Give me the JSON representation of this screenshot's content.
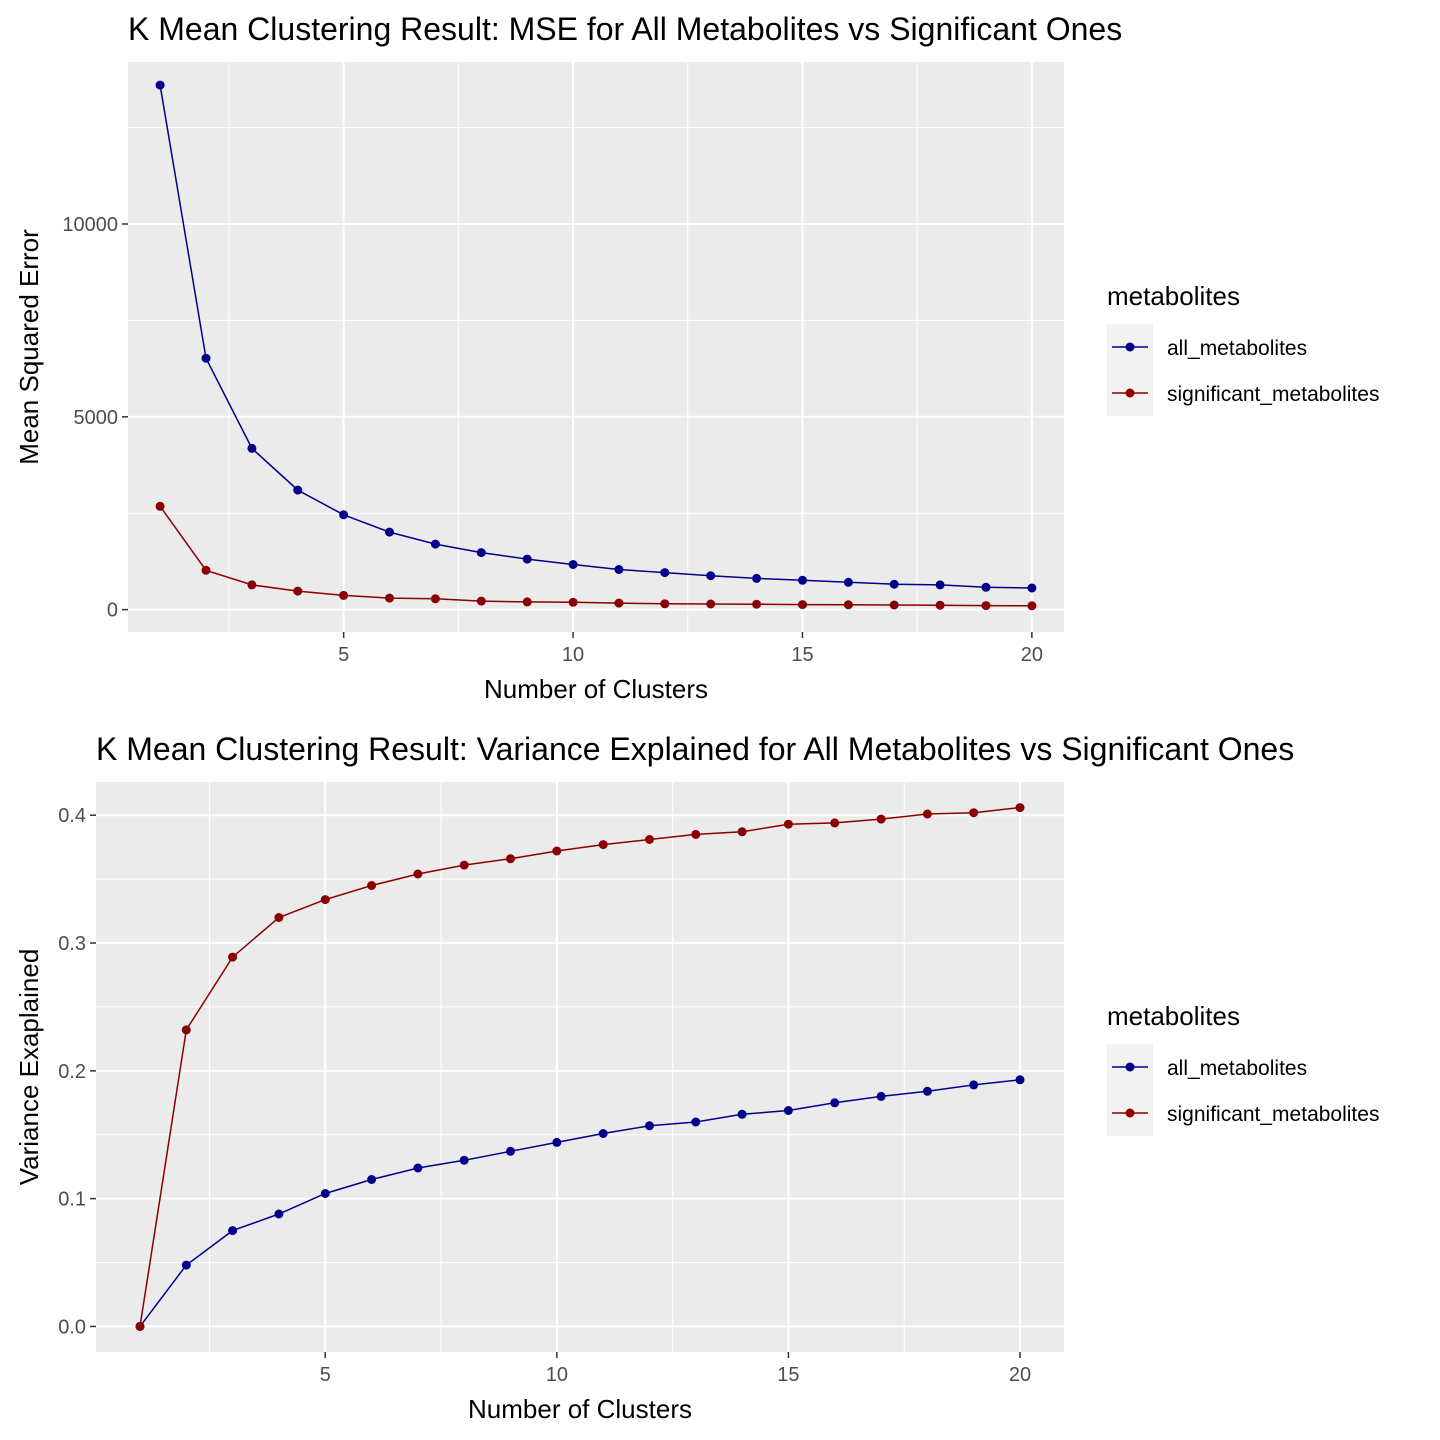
{
  "chart_data": [
    {
      "type": "line",
      "title": "K Mean Clustering Result: MSE for All Metabolites vs Significant Ones",
      "xlabel": "Number of Clusters",
      "ylabel": "Mean Squared Error",
      "xlim": [
        0.3,
        20.7
      ],
      "ylim": [
        -580,
        14200
      ],
      "x_ticks": [
        5,
        10,
        15,
        20
      ],
      "y_ticks": [
        0,
        5000,
        10000
      ],
      "x_tick_labels": [
        "5",
        "10",
        "15",
        "20"
      ],
      "y_tick_labels": [
        "0",
        "5000",
        "10000"
      ],
      "grid": true,
      "legend": {
        "title": "metabolites",
        "position": "right"
      },
      "x": [
        1,
        2,
        3,
        4,
        5,
        6,
        7,
        8,
        9,
        10,
        11,
        12,
        13,
        14,
        15,
        16,
        17,
        18,
        19,
        20
      ],
      "series": [
        {
          "name": "all_metabolites",
          "color": "#00008B",
          "values": [
            13600,
            6520,
            4180,
            3100,
            2460,
            2010,
            1700,
            1480,
            1310,
            1170,
            1040,
            960,
            880,
            810,
            760,
            710,
            660,
            640,
            580,
            560
          ]
        },
        {
          "name": "significant_metabolites",
          "color": "#8B0000",
          "values": [
            2680,
            1020,
            640,
            480,
            370,
            300,
            280,
            220,
            200,
            190,
            170,
            150,
            145,
            140,
            130,
            125,
            120,
            115,
            105,
            100
          ]
        }
      ]
    },
    {
      "type": "line",
      "title": "K Mean Clustering Result: Variance Explained for All Metabolites vs Significant Ones",
      "xlabel": "Number of Clusters",
      "ylabel": "Variance Exaplained",
      "xlim": [
        0.05,
        20.95
      ],
      "ylim": [
        -0.02,
        0.426
      ],
      "x_ticks": [
        5,
        10,
        15,
        20
      ],
      "y_ticks": [
        0.0,
        0.1,
        0.2,
        0.3,
        0.4
      ],
      "x_tick_labels": [
        "5",
        "10",
        "15",
        "20"
      ],
      "y_tick_labels": [
        "0.0",
        "0.1",
        "0.2",
        "0.3",
        "0.4"
      ],
      "grid": true,
      "legend": {
        "title": "metabolites",
        "position": "right"
      },
      "x": [
        1,
        2,
        3,
        4,
        5,
        6,
        7,
        8,
        9,
        10,
        11,
        12,
        13,
        14,
        15,
        16,
        17,
        18,
        19,
        20
      ],
      "series": [
        {
          "name": "all_metabolites",
          "color": "#00008B",
          "values": [
            0.0,
            0.048,
            0.075,
            0.088,
            0.104,
            0.115,
            0.124,
            0.13,
            0.137,
            0.144,
            0.151,
            0.157,
            0.16,
            0.166,
            0.169,
            0.175,
            0.18,
            0.184,
            0.189,
            0.193
          ]
        },
        {
          "name": "significant_metabolites",
          "color": "#8B0000",
          "values": [
            0.0,
            0.232,
            0.289,
            0.32,
            0.334,
            0.345,
            0.354,
            0.361,
            0.366,
            0.372,
            0.377,
            0.381,
            0.385,
            0.387,
            0.393,
            0.394,
            0.397,
            0.401,
            0.402,
            0.406
          ]
        }
      ]
    }
  ]
}
